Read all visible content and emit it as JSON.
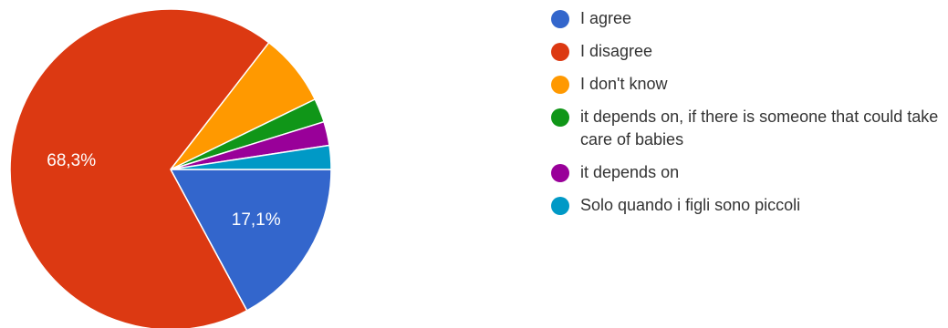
{
  "chart_data": {
    "type": "pie",
    "title": "",
    "start_angle_deg": 90,
    "direction": "clockwise",
    "slices": [
      {
        "label": "I agree",
        "value": 17.1,
        "color": "#3366cc",
        "show_label": true,
        "display_value": "17,1%"
      },
      {
        "label": "I disagree",
        "value": 68.3,
        "color": "#dc3912",
        "show_label": true,
        "display_value": "68,3%"
      },
      {
        "label": "I don't know",
        "value": 7.3,
        "color": "#ff9900",
        "show_label": false,
        "display_value": ""
      },
      {
        "label": "it depends on, if there is someone that could take care of babies",
        "value": 2.4,
        "color": "#109618",
        "show_label": false,
        "display_value": ""
      },
      {
        "label": "it depends on",
        "value": 2.4,
        "color": "#990099",
        "show_label": false,
        "display_value": ""
      },
      {
        "label": "Solo quando i figli sono piccoli",
        "value": 2.4,
        "color": "#0099c6",
        "show_label": false,
        "display_value": ""
      }
    ],
    "legend_position": "right"
  }
}
